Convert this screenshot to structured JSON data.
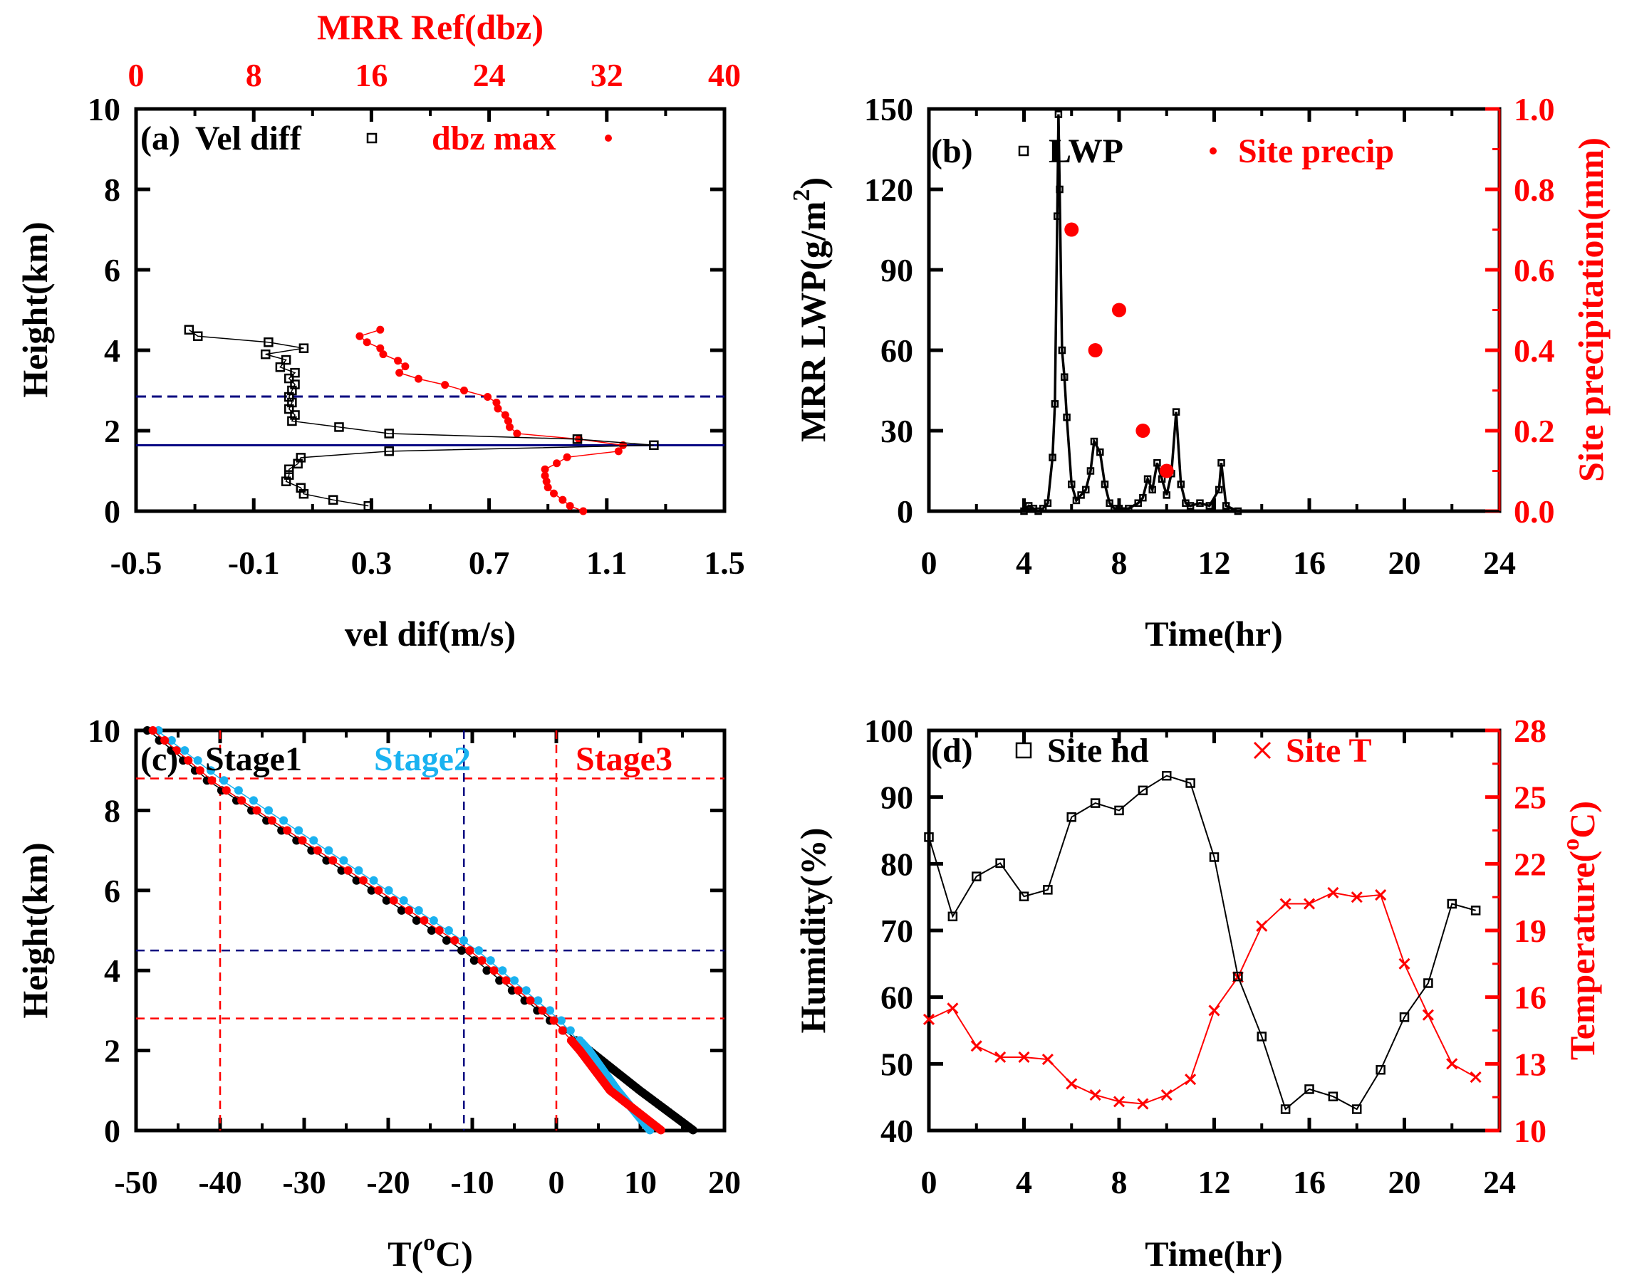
{
  "colors": {
    "black": "#000000",
    "red": "#ff0000",
    "cyan": "#1ab2f0",
    "navy": "#00007f"
  },
  "chart_data": [
    {
      "type": "line",
      "panel_label": "(a)",
      "xlabel": "vel dif(m/s)",
      "ylabel": "Height(km)",
      "x2label": "MRR Ref(dbz)",
      "xlim": [
        -0.5,
        1.5
      ],
      "x2lim": [
        0,
        40
      ],
      "ylim": [
        0,
        10
      ],
      "xticks": [
        "-0.5",
        "-0.1",
        "0.3",
        "0.7",
        "1.1",
        "1.5"
      ],
      "x2ticks": [
        "0",
        "8",
        "16",
        "24",
        "32",
        "40"
      ],
      "yticks": [
        "0",
        "2",
        "4",
        "6",
        "8",
        "10"
      ],
      "series": [
        {
          "name": "Vel diff",
          "axis": "bottom",
          "marker": "square",
          "color": "#000000",
          "points": [
            [
              -0.32,
              4.51
            ],
            [
              -0.29,
              4.35
            ],
            [
              -0.05,
              4.2
            ],
            [
              0.07,
              4.05
            ],
            [
              -0.06,
              3.9
            ],
            [
              0.01,
              3.76
            ],
            [
              -0.01,
              3.58
            ],
            [
              0.04,
              3.44
            ],
            [
              0.02,
              3.3
            ],
            [
              0.04,
              3.15
            ],
            [
              0.03,
              3.0
            ],
            [
              0.02,
              2.84
            ],
            [
              0.03,
              2.7
            ],
            [
              0.02,
              2.54
            ],
            [
              0.04,
              2.39
            ],
            [
              0.03,
              2.24
            ],
            [
              0.19,
              2.09
            ],
            [
              0.36,
              1.93
            ],
            [
              1.0,
              1.79
            ],
            [
              1.26,
              1.64
            ],
            [
              0.36,
              1.49
            ],
            [
              0.06,
              1.33
            ],
            [
              0.05,
              1.18
            ],
            [
              0.02,
              1.04
            ],
            [
              0.02,
              0.9
            ],
            [
              0.01,
              0.74
            ],
            [
              0.06,
              0.58
            ],
            [
              0.07,
              0.43
            ],
            [
              0.17,
              0.28
            ],
            [
              0.29,
              0.13
            ]
          ]
        },
        {
          "name": "dbz max",
          "axis": "top",
          "marker": "dot",
          "color": "#ff0000",
          "points": [
            [
              16.6,
              4.51
            ],
            [
              15.2,
              4.35
            ],
            [
              15.7,
              4.2
            ],
            [
              16.6,
              4.05
            ],
            [
              16.8,
              3.9
            ],
            [
              17.8,
              3.74
            ],
            [
              18.3,
              3.6
            ],
            [
              17.9,
              3.44
            ],
            [
              19.2,
              3.29
            ],
            [
              21.0,
              3.14
            ],
            [
              22.3,
              3.0
            ],
            [
              23.9,
              2.84
            ],
            [
              24.5,
              2.7
            ],
            [
              24.6,
              2.55
            ],
            [
              25.1,
              2.39
            ],
            [
              25.3,
              2.24
            ],
            [
              25.4,
              2.09
            ],
            [
              25.9,
              1.93
            ],
            [
              30.1,
              1.79
            ],
            [
              33.1,
              1.64
            ],
            [
              32.8,
              1.49
            ],
            [
              29.3,
              1.34
            ],
            [
              28.6,
              1.19
            ],
            [
              27.8,
              1.04
            ],
            [
              27.8,
              0.88
            ],
            [
              27.9,
              0.74
            ],
            [
              28.0,
              0.59
            ],
            [
              28.4,
              0.44
            ],
            [
              29.0,
              0.28
            ],
            [
              29.5,
              0.13
            ],
            [
              30.4,
              0.0
            ]
          ]
        }
      ],
      "reference_lines": [
        {
          "y": 2.85,
          "style": "dashed",
          "color": "#00007f"
        },
        {
          "y": 1.64,
          "style": "solid",
          "color": "#00007f"
        }
      ]
    },
    {
      "type": "line",
      "panel_label": "(b)",
      "xlabel": "Time(hr)",
      "ylabel": "MRR LWP(g/m",
      "ylabel_sup": "2",
      "ylabel_end": ")",
      "y2label": "Site precipitation(mm)",
      "xlim": [
        0,
        24
      ],
      "ylim": [
        0,
        150
      ],
      "y2lim": [
        0,
        1.0
      ],
      "xticks": [
        "0",
        "4",
        "8",
        "12",
        "16",
        "20",
        "24"
      ],
      "yticks": [
        "0",
        "30",
        "60",
        "90",
        "120",
        "150"
      ],
      "y2ticks": [
        "0.0",
        "0.2",
        "0.4",
        "0.6",
        "0.8",
        "1.0"
      ],
      "series": [
        {
          "name": "LWP",
          "axis": "left",
          "marker": "square",
          "color": "#000000",
          "points": [
            [
              0,
              0
            ],
            [
              2,
              0
            ],
            [
              4.0,
              0
            ],
            [
              4.2,
              2
            ],
            [
              4.4,
              1
            ],
            [
              4.6,
              0
            ],
            [
              4.8,
              1
            ],
            [
              5.0,
              3
            ],
            [
              5.2,
              20
            ],
            [
              5.3,
              40
            ],
            [
              5.4,
              110
            ],
            [
              5.45,
              148
            ],
            [
              5.5,
              120
            ],
            [
              5.6,
              60
            ],
            [
              5.7,
              50
            ],
            [
              5.8,
              35
            ],
            [
              6.0,
              10
            ],
            [
              6.2,
              4
            ],
            [
              6.4,
              6
            ],
            [
              6.6,
              8
            ],
            [
              6.8,
              15
            ],
            [
              6.95,
              26
            ],
            [
              7.2,
              22
            ],
            [
              7.4,
              10
            ],
            [
              7.6,
              3
            ],
            [
              7.8,
              1
            ],
            [
              8.0,
              1
            ],
            [
              8.4,
              1
            ],
            [
              8.8,
              3
            ],
            [
              9.0,
              5
            ],
            [
              9.2,
              12
            ],
            [
              9.4,
              8
            ],
            [
              9.6,
              18
            ],
            [
              9.8,
              12
            ],
            [
              10.0,
              6
            ],
            [
              10.2,
              14
            ],
            [
              10.4,
              37
            ],
            [
              10.6,
              10
            ],
            [
              10.8,
              3
            ],
            [
              11.0,
              2
            ],
            [
              11.4,
              3
            ],
            [
              11.8,
              2
            ],
            [
              12.2,
              8
            ],
            [
              12.3,
              18
            ],
            [
              12.5,
              2
            ],
            [
              13,
              0
            ],
            [
              16,
              0
            ],
            [
              20,
              0
            ],
            [
              24,
              0
            ]
          ]
        },
        {
          "name": "Site precip",
          "axis": "right",
          "marker": "dot",
          "color": "#ff0000",
          "points": [
            [
              6,
              0.7
            ],
            [
              7,
              0.4
            ],
            [
              8,
              0.5
            ],
            [
              9,
              0.2
            ],
            [
              10,
              0.1
            ]
          ]
        }
      ]
    },
    {
      "type": "line",
      "panel_label": "(c)",
      "xlabel": "T(",
      "xlabel_sup": "o",
      "xlabel_end": "C)",
      "ylabel": "Height(km)",
      "xlim": [
        -50,
        20
      ],
      "ylim": [
        0,
        10
      ],
      "xticks": [
        "-50",
        "-40",
        "-30",
        "-20",
        "-10",
        "0",
        "10",
        "20"
      ],
      "yticks": [
        "0",
        "2",
        "4",
        "6",
        "8",
        "10"
      ],
      "series": [
        {
          "name": "Stage1",
          "color": "#000000",
          "points": [
            [
              -48.5,
              10
            ],
            [
              -41.1,
              8.7
            ],
            [
              -11.1,
              4.5
            ],
            [
              -0.9,
              2.8
            ],
            [
              4.1,
              2
            ],
            [
              10.1,
              1
            ],
            [
              16.5,
              0
            ]
          ]
        },
        {
          "name": "Stage2",
          "color": "#1ab2f0",
          "points": [
            [
              -47.5,
              10
            ],
            [
              -39.4,
              8.7
            ],
            [
              -9.4,
              4.5
            ],
            [
              0.2,
              2.8
            ],
            [
              3.7,
              2
            ],
            [
              7.1,
              1
            ],
            [
              11.0,
              0
            ]
          ]
        },
        {
          "name": "Stage3",
          "color": "#ff0000",
          "points": [
            [
              -48,
              10
            ],
            [
              -40.7,
              8.7
            ],
            [
              -10.3,
              4.5
            ],
            [
              -0.5,
              2.8
            ],
            [
              2.8,
              2
            ],
            [
              6.4,
              1
            ],
            [
              12.5,
              0
            ]
          ]
        }
      ],
      "reference_lines": [
        {
          "y": 8.8,
          "style": "dashed",
          "color": "#ff0000"
        },
        {
          "y": 4.5,
          "style": "dashed",
          "color": "#00007f"
        },
        {
          "y": 2.8,
          "style": "dashed",
          "color": "#ff0000"
        },
        {
          "x": -40,
          "style": "dashed",
          "color": "#ff0000"
        },
        {
          "x": -11,
          "style": "dashed",
          "color": "#00007f"
        },
        {
          "x": 0,
          "style": "dashed",
          "color": "#ff0000"
        }
      ]
    },
    {
      "type": "line",
      "panel_label": "(d)",
      "xlabel": "Time(hr)",
      "ylabel": "Humidity(%)",
      "y2label": "Temperature(",
      "y2label_sup": "o",
      "y2label_end": "C)",
      "xlim": [
        0,
        24
      ],
      "ylim": [
        40,
        100
      ],
      "y2lim": [
        10,
        28
      ],
      "xticks": [
        "0",
        "4",
        "8",
        "12",
        "16",
        "20",
        "24"
      ],
      "yticks": [
        "40",
        "50",
        "60",
        "70",
        "80",
        "90",
        "100"
      ],
      "y2ticks": [
        "10",
        "13",
        "16",
        "19",
        "22",
        "25",
        "28"
      ],
      "series": [
        {
          "name": "Site hd",
          "axis": "left",
          "marker": "square",
          "color": "#000000",
          "x": [
            0,
            1,
            2,
            3,
            4,
            5,
            6,
            7,
            8,
            9,
            10,
            11,
            12,
            13,
            14,
            15,
            16,
            17,
            18,
            19,
            20,
            21,
            22,
            23
          ],
          "values": [
            84.0,
            72.1,
            78.1,
            80.1,
            75.1,
            76.1,
            87.0,
            89.1,
            88.0,
            91.0,
            93.2,
            92.1,
            81.0,
            63.1,
            54.1,
            43.2,
            46.2,
            45.1,
            43.2,
            49.1,
            57.0,
            62.1,
            74.0,
            73.0
          ]
        },
        {
          "name": "Site T",
          "axis": "right",
          "marker": "x",
          "color": "#ff0000",
          "x": [
            0,
            1,
            2,
            3,
            4,
            5,
            6,
            7,
            8,
            9,
            10,
            11,
            12,
            13,
            14,
            15,
            16,
            17,
            18,
            19,
            20,
            21,
            22,
            23
          ],
          "values": [
            15.0,
            15.5,
            13.8,
            13.3,
            13.3,
            13.2,
            12.1,
            11.6,
            11.3,
            11.2,
            11.6,
            12.3,
            15.4,
            16.9,
            19.2,
            20.2,
            20.2,
            20.7,
            20.5,
            20.6,
            17.5,
            15.2,
            13.0,
            12.4
          ]
        }
      ]
    }
  ]
}
